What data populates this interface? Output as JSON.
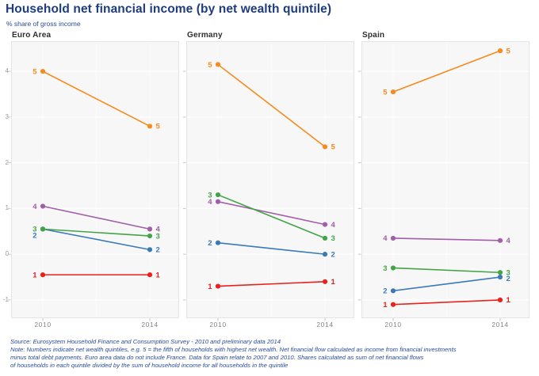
{
  "header": {
    "title": "Household net financial income (by net wealth quintile)",
    "subtitle": "% share of gross income"
  },
  "colors": {
    "title_text": "#1e3c7e",
    "subtitle_text": "#2a4b9b",
    "footnote_text": "#2a4b9b",
    "panel_title_text": "#2e2e2e",
    "axis_text": "#9a9a9a",
    "panel_bg": "#f7f7f7",
    "panel_border": "#e4e4e4",
    "gridline": "#ffffff",
    "tick": "#c4c4c4",
    "series": {
      "1": "#e8211d",
      "2": "#3b7ab6",
      "3": "#43a447",
      "4": "#a05fa8",
      "5": "#f68b1f"
    }
  },
  "chart_data": {
    "type": "line",
    "x_categories": [
      "2010",
      "2014"
    ],
    "ylim": [
      -1.4,
      4.66
    ],
    "yticks": [
      4,
      3,
      2,
      1,
      0,
      -1
    ],
    "grid": true,
    "legend": "labels-on-points",
    "series_names": [
      "1",
      "2",
      "3",
      "4",
      "5"
    ],
    "draw_order": [
      "5",
      "4",
      "1",
      "2",
      "3"
    ],
    "panels": [
      {
        "title": "Euro Area",
        "series": [
          {
            "name": "1",
            "values": [
              -0.45,
              -0.45
            ]
          },
          {
            "name": "2",
            "values": [
              0.55,
              0.1
            ]
          },
          {
            "name": "3",
            "values": [
              0.55,
              0.4
            ]
          },
          {
            "name": "4",
            "values": [
              1.05,
              0.55
            ]
          },
          {
            "name": "5",
            "values": [
              4.0,
              2.8
            ]
          }
        ]
      },
      {
        "title": "Germany",
        "series": [
          {
            "name": "1",
            "values": [
              -0.7,
              -0.6
            ]
          },
          {
            "name": "2",
            "values": [
              0.25,
              0.0
            ]
          },
          {
            "name": "3",
            "values": [
              1.3,
              0.35
            ]
          },
          {
            "name": "4",
            "values": [
              1.15,
              0.65
            ]
          },
          {
            "name": "5",
            "values": [
              4.15,
              2.35
            ]
          }
        ]
      },
      {
        "title": "Spain",
        "series": [
          {
            "name": "1",
            "values": [
              -1.1,
              -1.0
            ]
          },
          {
            "name": "2",
            "values": [
              -0.8,
              -0.5
            ]
          },
          {
            "name": "3",
            "values": [
              -0.3,
              -0.4
            ]
          },
          {
            "name": "4",
            "values": [
              0.35,
              0.3
            ]
          },
          {
            "name": "5",
            "values": [
              3.55,
              4.45
            ]
          }
        ]
      }
    ]
  },
  "footnotes": {
    "lines": [
      "Source: Eurosystem Household Finance and Consumption Survey - 2010 and preliminary data 2014",
      "Note: Numbers indicate net wealth quintiles, e.g. 5 = the fifth of households with highest net wealth. Net financial flow calculated as income from financial investments",
      "minus total debt payments. Euro area data do not include France. Data for Spain relate to 2007 and 2010. Shares calculated as sum of net financial flows",
      "of households in each quintile divided by the sum of household income for all households in the quintile"
    ]
  }
}
